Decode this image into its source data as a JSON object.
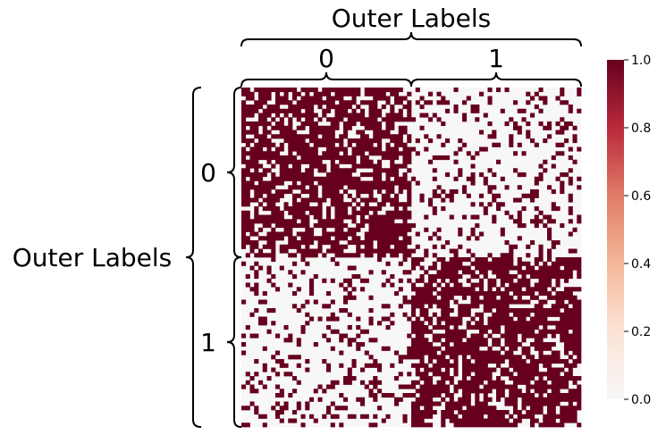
{
  "chart_data": {
    "type": "heatmap",
    "title": "",
    "top_axis_label": "Outer Labels",
    "left_axis_label": "Outer Labels",
    "group_labels": [
      "0",
      "1"
    ],
    "matrix_size": 80,
    "block_sizes": [
      40,
      40
    ],
    "block_density": [
      [
        0.7,
        0.2
      ],
      [
        0.2,
        0.7
      ]
    ],
    "diagonal": 1,
    "symmetric": true,
    "values_note_binary": [
      0,
      1
    ],
    "color_scale": {
      "vmin": 0.0,
      "vmax": 1.0,
      "low_color": "#f7f7f7",
      "mid_color": "#f4a582",
      "high_color": "#67001f",
      "colormap": "RdBu_r (upper half)"
    },
    "colorbar_ticks": [
      "0.0",
      "0.2",
      "0.4",
      "0.6",
      "0.8",
      "1.0"
    ],
    "colorbar_tick_values": [
      0.0,
      0.2,
      0.4,
      0.6,
      0.8,
      1.0
    ],
    "grid": false
  }
}
